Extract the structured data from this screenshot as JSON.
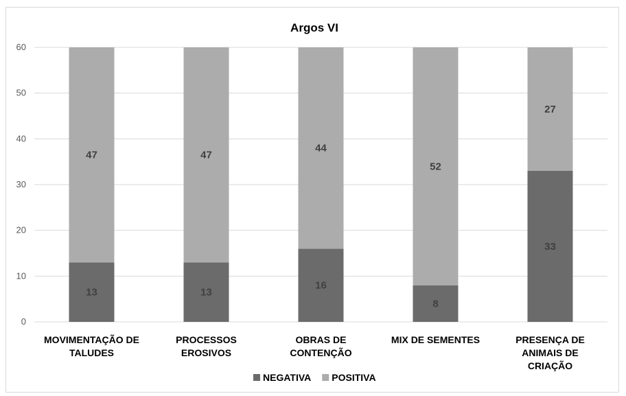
{
  "chart_data": {
    "type": "bar",
    "stacked": true,
    "title": "Argos VI",
    "xlabel": "",
    "ylabel": "",
    "ylim": [
      0,
      60
    ],
    "yticks": [
      0,
      10,
      20,
      30,
      40,
      50,
      60
    ],
    "grid": true,
    "legend_position": "bottom",
    "categories": [
      [
        "MOVIMENTAÇÃO DE",
        "TALUDES"
      ],
      [
        "PROCESSOS",
        "EROSIVOS"
      ],
      [
        "OBRAS DE",
        "CONTENÇÃO"
      ],
      [
        "MIX DE SEMENTES"
      ],
      [
        "PRESENÇA DE",
        "ANIMAIS DE",
        "CRIAÇÃO"
      ]
    ],
    "series": [
      {
        "name": "NEGATIVA",
        "color": "#6b6b6b",
        "values": [
          13,
          13,
          16,
          8,
          33
        ]
      },
      {
        "name": "POSITIVA",
        "color": "#acacac",
        "values": [
          47,
          47,
          44,
          52,
          27
        ]
      }
    ]
  }
}
